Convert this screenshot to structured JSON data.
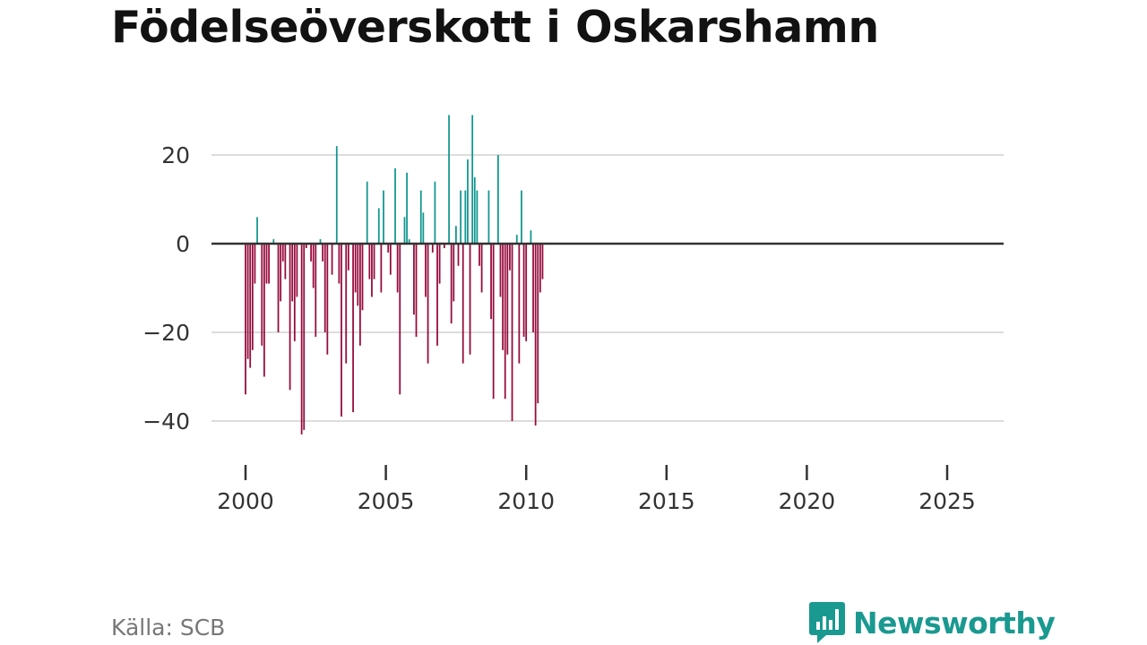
{
  "title": "Födelseöverskott i Oskarshamn",
  "source": "Källa: SCB",
  "brand": "Newsworthy",
  "colors": {
    "positive": "#12968f",
    "negative": "#960a3c",
    "grid": "#dddddd",
    "zero_line": "#333333",
    "brand": "#1a9990"
  },
  "chart_data": {
    "type": "bar",
    "title": "Födelseöverskott i Oskarshamn",
    "xlabel": "",
    "ylabel": "",
    "frequency": "monthly",
    "x_start": 2000.0,
    "x_step": 0.0833,
    "xlim": [
      1999.7,
      2026.9
    ],
    "ylim": [
      -48,
      32
    ],
    "y_ticks": [
      20,
      0,
      -20,
      -40
    ],
    "y_tick_labels": [
      "20",
      "0",
      "−20",
      "−40"
    ],
    "x_ticks": [
      2000,
      2005,
      2010,
      2015,
      2020,
      2025
    ],
    "x_tick_labels": [
      "2000",
      "2005",
      "2010",
      "2015",
      "2020",
      "2025"
    ],
    "values": [
      -34,
      -26,
      -28,
      -24,
      -9,
      6,
      0,
      -23,
      -30,
      -9,
      -9,
      0,
      1,
      0,
      -20,
      -13,
      -4,
      -8,
      0,
      -33,
      -13,
      -22,
      -12,
      0,
      -43,
      -42,
      -1,
      0,
      -4,
      -10,
      -21,
      0,
      1,
      -4,
      -20,
      -25,
      0,
      -7,
      0,
      22,
      -9,
      -39,
      0,
      -27,
      -6,
      0,
      -38,
      -11,
      -14,
      -23,
      -15,
      0,
      14,
      -8,
      -12,
      -8,
      0,
      8,
      -11,
      12,
      0,
      -2,
      -7,
      0,
      17,
      -11,
      -34,
      0,
      6,
      16,
      1,
      0,
      -16,
      -21,
      0,
      12,
      7,
      -12,
      -27,
      0,
      -2,
      14,
      -23,
      -9,
      0,
      -1,
      0,
      29,
      -18,
      -13,
      4,
      -5,
      12,
      -27,
      12,
      19,
      -25,
      29,
      15,
      12,
      -5,
      -11,
      0,
      0,
      12,
      -17,
      -35,
      0,
      20,
      -12,
      -24,
      -35,
      -25,
      -6,
      -40,
      0,
      2,
      -27,
      12,
      -21,
      -22,
      0,
      3,
      -20,
      -41,
      -36,
      -11,
      -8
    ]
  }
}
